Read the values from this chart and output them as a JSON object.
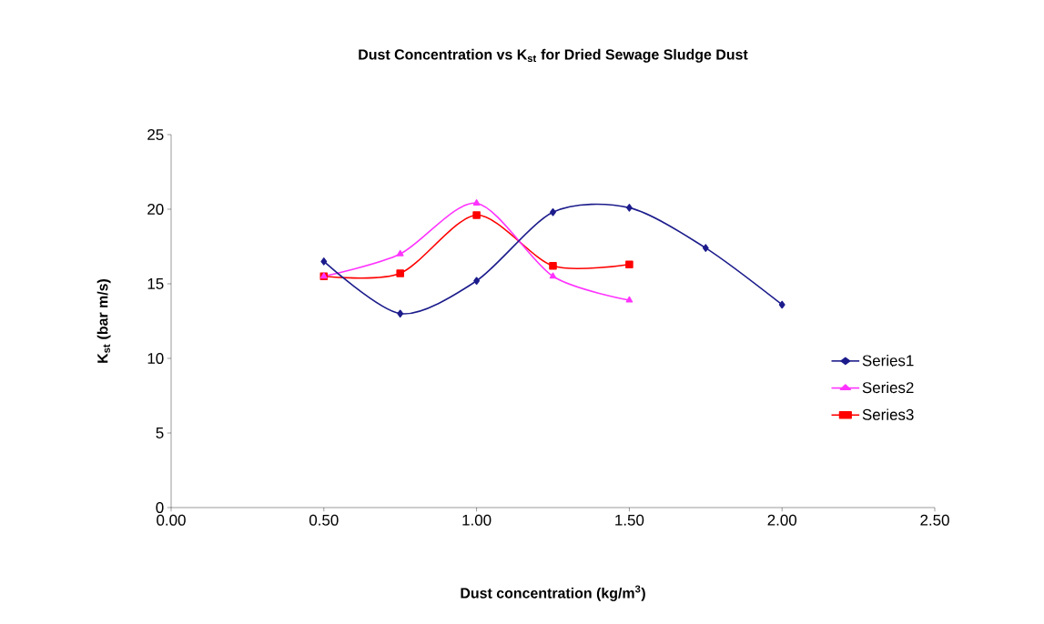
{
  "chart_data": {
    "type": "line",
    "title": "Dust Concentration vs K$_{st}$ for Dried Sewage Sludge Dust",
    "xlabel": "Dust concentration (kg/m$^{3}$)",
    "ylabel": "K$_{st}$ (bar m/s)",
    "series": [
      {
        "name": "Series1",
        "color": "#1c1c8c",
        "marker": "diamond",
        "x": [
          0.5,
          0.75,
          1.0,
          1.25,
          1.5,
          1.75,
          2.0
        ],
        "values": [
          16.5,
          13.0,
          15.2,
          19.8,
          20.1,
          17.4,
          13.6
        ]
      },
      {
        "name": "Series2",
        "color": "#ff33ff",
        "marker": "triangle",
        "x": [
          0.5,
          0.75,
          1.0,
          1.25,
          1.5
        ],
        "values": [
          15.5,
          17.0,
          20.4,
          15.5,
          13.9
        ]
      },
      {
        "name": "Series3",
        "color": "#ff0000",
        "marker": "square",
        "x": [
          0.5,
          0.75,
          1.0,
          1.25,
          1.5
        ],
        "values": [
          15.5,
          15.7,
          19.6,
          16.2,
          16.3
        ]
      }
    ],
    "xlim": [
      0,
      2.5
    ],
    "ylim": [
      0,
      25
    ],
    "xticks": [
      {
        "value": 0,
        "label": "0.00"
      },
      {
        "value": 0.5,
        "label": "0.50"
      },
      {
        "value": 1.0,
        "label": "1.00"
      },
      {
        "value": 1.5,
        "label": "1.50"
      },
      {
        "value": 2.0,
        "label": "2.00"
      },
      {
        "value": 2.5,
        "label": "2.50"
      }
    ],
    "yticks": [
      0,
      5,
      10,
      15,
      20,
      25
    ],
    "grid": false,
    "legend": "right",
    "line_style": "solid"
  }
}
